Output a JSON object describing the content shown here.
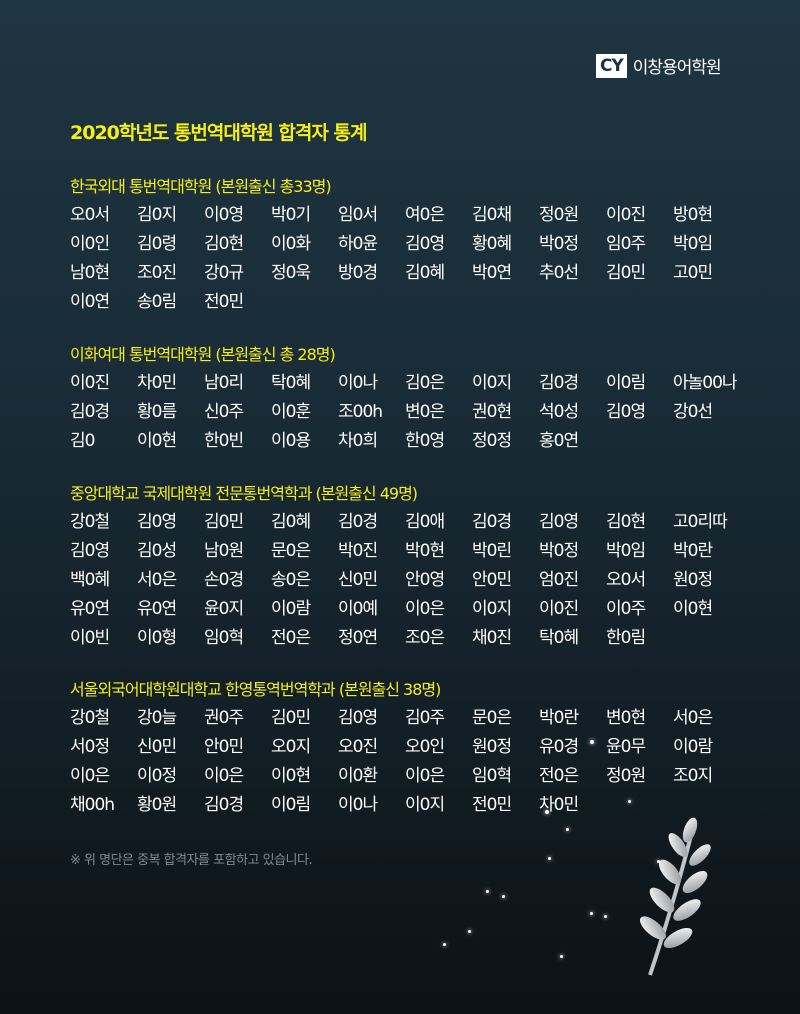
{
  "logo": {
    "mark": "CY",
    "name": "이창용어학원"
  },
  "title": "2020학년도 통번역대학원 합격자 통계",
  "sections": [
    {
      "title": "한국외대 통번역대학원 (본원출신 총33명)",
      "names": [
        "오0서",
        "김0지",
        "이0영",
        "박0기",
        "임0서",
        "여0은",
        "김0채",
        "정0원",
        "이0진",
        "방0현",
        "이0인",
        "김0령",
        "김0현",
        "이0화",
        "하0윤",
        "김0영",
        "황0혜",
        "박0정",
        "임0주",
        "박0임",
        "남0현",
        "조0진",
        "강0규",
        "정0욱",
        "방0경",
        "김0혜",
        "박0연",
        "추0선",
        "김0민",
        "고0민",
        "이0연",
        "송0림",
        "전0민"
      ]
    },
    {
      "title": "이화여대 통번역대학원 (본원출신 총 28명)",
      "names": [
        "이0진",
        "차0민",
        "남0리",
        "탁0혜",
        "이0나",
        "김0은",
        "이0지",
        "김0경",
        "이0림",
        "아놀00나",
        "김0경",
        "황0름",
        "신0주",
        "이0훈",
        "조00h",
        "변0은",
        "권0현",
        "석0성",
        "김0영",
        "강0선",
        "김0",
        "이0현",
        "한0빈",
        "이0용",
        "차0희",
        "한0영",
        "정0정",
        "홍0연"
      ]
    },
    {
      "title": "중앙대학교 국제대학원 전문통번역학과 (본원출신 49명)",
      "names": [
        "강0철",
        "김0영",
        "김0민",
        "김0혜",
        "김0경",
        "김0애",
        "김0경",
        "김0영",
        "김0현",
        "고0리따",
        "김0영",
        "김0성",
        "남0원",
        "문0은",
        "박0진",
        "박0현",
        "박0린",
        "박0정",
        "박0임",
        "박0란",
        "백0혜",
        "서0은",
        "손0경",
        "송0은",
        "신0민",
        "안0영",
        "안0민",
        "엄0진",
        "오0서",
        "원0정",
        "유0연",
        "유0연",
        "윤0지",
        "이0람",
        "이0예",
        "이0은",
        "이0지",
        "이0진",
        "이0주",
        "이0현",
        "이0빈",
        "이0형",
        "임0혁",
        "전0은",
        "정0연",
        "조0은",
        "채0진",
        "탁0혜",
        "한0림"
      ]
    },
    {
      "title": "서울외국어대학원대학교 한영통역번역학과 (본원출신 38명)",
      "names": [
        "강0철",
        "강0늘",
        "권0주",
        "김0민",
        "김0영",
        "김0주",
        "문0은",
        "박0란",
        "변0현",
        "서0은",
        "서0정",
        "신0민",
        "안0민",
        "오0지",
        "오0진",
        "오0인",
        "원0정",
        "유0경",
        "윤0무",
        "이0람",
        "이0은",
        "이0정",
        "이0은",
        "이0현",
        "이0환",
        "이0은",
        "임0혁",
        "전0은",
        "정0원",
        "조0지",
        "채00h",
        "황0원",
        "김0경",
        "이0림",
        "이0나",
        "이0지",
        "전0민",
        "차0민"
      ]
    }
  ],
  "note": "※ 위 명단은 중복 합격자를 포함하고 있습니다.",
  "colors": {
    "accent": "#f6ee1a",
    "background_top": "#1e3542",
    "background_bottom": "#0c1216"
  }
}
